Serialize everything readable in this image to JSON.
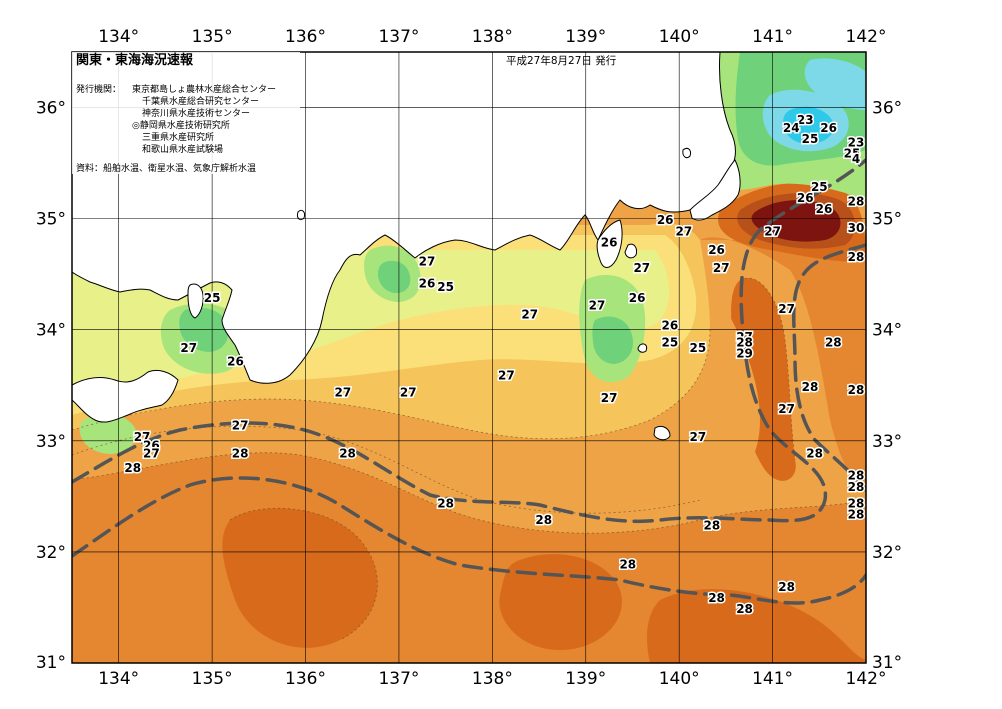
{
  "header": {
    "title": "関東・東海海況速報",
    "date": "平成27年8月27日 発行",
    "issuer_label": "発行機関：",
    "issuers": [
      "東京都島しょ農林水産総合センター",
      "千葉県水産総合研究センター",
      "神奈川県水産技術センター",
      "◎静岡県水産技術研究所",
      "三重県水産研究所",
      "和歌山県水産試験場"
    ],
    "source": "資料：船舶水温、衛星水温、気象庁解析水温"
  },
  "axes": {
    "lon_ticks": [
      "134°",
      "135°",
      "136°",
      "137°",
      "138°",
      "139°",
      "140°",
      "141°",
      "142°"
    ],
    "lat_ticks": [
      "36°",
      "35°",
      "34°",
      "33°",
      "32°",
      "31°"
    ]
  },
  "colors": {
    "land": "#ffffff",
    "coast": "#000000",
    "t23": "#2ec8e8",
    "t24": "#7dd9e8",
    "t25": "#6fd27a",
    "t26": "#a8e47c",
    "t26_5": "#e8f08a",
    "t27": "#fbe07a",
    "t27_5": "#f5c45a",
    "t28": "#eea446",
    "t28_5": "#e58630",
    "t29": "#d86a1c",
    "t29_5": "#b8501a",
    "t30": "#7e1410",
    "kuroshio": "#555555"
  },
  "temperature_labels": [
    {
      "lon": 141.35,
      "lat": 35.85,
      "text": "23"
    },
    {
      "lon": 141.2,
      "lat": 35.78,
      "text": "24"
    },
    {
      "lon": 141.4,
      "lat": 35.68,
      "text": "25"
    },
    {
      "lon": 141.6,
      "lat": 35.78,
      "text": "26"
    },
    {
      "lon": 141.95,
      "lat": 35.65,
      "text": "23"
    },
    {
      "lon": 141.85,
      "lat": 35.55,
      "text": "25"
    },
    {
      "lon": 141.9,
      "lat": 35.5,
      "text": "4"
    },
    {
      "lon": 141.5,
      "lat": 35.25,
      "text": "25"
    },
    {
      "lon": 141.35,
      "lat": 35.15,
      "text": "26"
    },
    {
      "lon": 141.55,
      "lat": 35.05,
      "text": "26"
    },
    {
      "lon": 142.45,
      "lat": 35.12,
      "text": "28"
    },
    {
      "lon": 141.95,
      "lat": 34.88,
      "text": "30"
    },
    {
      "lon": 142.7,
      "lat": 34.62,
      "text": "28"
    },
    {
      "lon": 139.85,
      "lat": 34.95,
      "text": "26"
    },
    {
      "lon": 140.05,
      "lat": 34.85,
      "text": "27"
    },
    {
      "lon": 140.4,
      "lat": 34.68,
      "text": "26"
    },
    {
      "lon": 141.0,
      "lat": 34.85,
      "text": "27"
    },
    {
      "lon": 139.25,
      "lat": 34.75,
      "text": "26"
    },
    {
      "lon": 139.6,
      "lat": 34.52,
      "text": "27"
    },
    {
      "lon": 140.45,
      "lat": 34.52,
      "text": "27"
    },
    {
      "lon": 139.55,
      "lat": 34.25,
      "text": "26"
    },
    {
      "lon": 141.15,
      "lat": 34.15,
      "text": "27"
    },
    {
      "lon": 139.9,
      "lat": 34.0,
      "text": "26"
    },
    {
      "lon": 139.9,
      "lat": 33.85,
      "text": "25"
    },
    {
      "lon": 140.2,
      "lat": 33.8,
      "text": "25"
    },
    {
      "lon": 140.7,
      "lat": 33.9,
      "text": "27"
    },
    {
      "lon": 140.7,
      "lat": 33.85,
      "text": "28"
    },
    {
      "lon": 140.7,
      "lat": 33.75,
      "text": "29"
    },
    {
      "lon": 139.12,
      "lat": 34.18,
      "text": "27"
    },
    {
      "lon": 137.3,
      "lat": 34.58,
      "text": "27"
    },
    {
      "lon": 137.5,
      "lat": 34.35,
      "text": "25"
    },
    {
      "lon": 137.3,
      "lat": 34.38,
      "text": "26"
    },
    {
      "lon": 138.4,
      "lat": 34.1,
      "text": "27"
    },
    {
      "lon": 138.15,
      "lat": 33.55,
      "text": "27"
    },
    {
      "lon": 137.1,
      "lat": 33.4,
      "text": "27"
    },
    {
      "lon": 139.25,
      "lat": 33.35,
      "text": "27"
    },
    {
      "lon": 140.2,
      "lat": 33.0,
      "text": "27"
    },
    {
      "lon": 141.15,
      "lat": 33.25,
      "text": "27"
    },
    {
      "lon": 141.4,
      "lat": 33.45,
      "text": "28"
    },
    {
      "lon": 141.45,
      "lat": 32.85,
      "text": "28"
    },
    {
      "lon": 141.9,
      "lat": 32.65,
      "text": "28"
    },
    {
      "lon": 142.15,
      "lat": 32.55,
      "text": "28"
    },
    {
      "lon": 141.95,
      "lat": 32.3,
      "text": "28"
    },
    {
      "lon": 142.45,
      "lat": 32.4,
      "text": "28"
    },
    {
      "lon": 141.65,
      "lat": 33.85,
      "text": "28"
    },
    {
      "lon": 142.55,
      "lat": 33.42,
      "text": "28"
    },
    {
      "lon": 135.0,
      "lat": 34.25,
      "text": "25"
    },
    {
      "lon": 134.75,
      "lat": 33.8,
      "text": "27"
    },
    {
      "lon": 135.25,
      "lat": 33.68,
      "text": "26"
    },
    {
      "lon": 136.4,
      "lat": 33.4,
      "text": "27"
    },
    {
      "lon": 135.3,
      "lat": 33.1,
      "text": "27"
    },
    {
      "lon": 134.25,
      "lat": 33.0,
      "text": "27"
    },
    {
      "lon": 134.35,
      "lat": 32.92,
      "text": "26"
    },
    {
      "lon": 134.35,
      "lat": 32.85,
      "text": "27"
    },
    {
      "lon": 134.15,
      "lat": 32.72,
      "text": "28"
    },
    {
      "lon": 135.3,
      "lat": 32.85,
      "text": "28"
    },
    {
      "lon": 136.45,
      "lat": 32.85,
      "text": "28"
    },
    {
      "lon": 137.5,
      "lat": 32.4,
      "text": "28"
    },
    {
      "lon": 138.55,
      "lat": 32.25,
      "text": "28"
    },
    {
      "lon": 140.35,
      "lat": 32.2,
      "text": "28"
    },
    {
      "lon": 139.45,
      "lat": 31.85,
      "text": "28"
    },
    {
      "lon": 140.4,
      "lat": 31.55,
      "text": "28"
    },
    {
      "lon": 140.7,
      "lat": 31.45,
      "text": "28"
    },
    {
      "lon": 141.15,
      "lat": 31.65,
      "text": "28"
    }
  ]
}
